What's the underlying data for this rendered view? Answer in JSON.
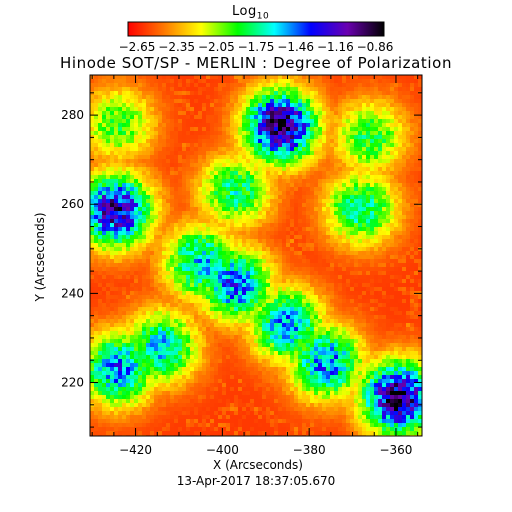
{
  "chart_data": {
    "type": "heatmap",
    "title": "Hinode SOT/SP - MERLIN : Degree of Polarization",
    "xlabel": "X (Arcseconds)",
    "ylabel": "Y (Arcseconds)",
    "timestamp": "13-Apr-2017 18:37:05.670",
    "colorbar": {
      "label_main": "Log",
      "label_sub": "10",
      "ticks": [
        "-2.65",
        "-2.35",
        "-2.05",
        "-1.75",
        "-1.46",
        "-1.16",
        "-0.86"
      ],
      "range": [
        -2.75,
        -0.78
      ],
      "colors": [
        "#ff0000",
        "#ff7a00",
        "#ffff00",
        "#00ff00",
        "#00ffff",
        "#0000ff",
        "#6a00b0",
        "#000000"
      ]
    },
    "xlim": [
      -430.5,
      -354
    ],
    "ylim": [
      208,
      289
    ],
    "x_ticks": [
      -420,
      -400,
      -380,
      -360
    ],
    "y_ticks": [
      220,
      240,
      260,
      280
    ],
    "grid": false,
    "features": [
      {
        "x": -386.5,
        "y": 277.5,
        "value": -0.95
      },
      {
        "x": -368.0,
        "y": 259.0,
        "value": -1.7
      },
      {
        "x": -405.0,
        "y": 247.0,
        "value": -1.55
      },
      {
        "x": -424.5,
        "y": 258.5,
        "value": -1.1
      },
      {
        "x": -397.0,
        "y": 242.0,
        "value": -1.4
      },
      {
        "x": -385.0,
        "y": 233.0,
        "value": -1.5
      },
      {
        "x": -376.0,
        "y": 224.5,
        "value": -1.45
      },
      {
        "x": -359.5,
        "y": 216.5,
        "value": -0.95
      },
      {
        "x": -414.0,
        "y": 228.0,
        "value": -1.6
      },
      {
        "x": -424.0,
        "y": 223.0,
        "value": -1.45
      },
      {
        "x": -397.0,
        "y": 263.0,
        "value": -1.75
      },
      {
        "x": -366.0,
        "y": 275.0,
        "value": -1.85
      },
      {
        "x": -424.0,
        "y": 278.0,
        "value": -1.9
      }
    ]
  }
}
